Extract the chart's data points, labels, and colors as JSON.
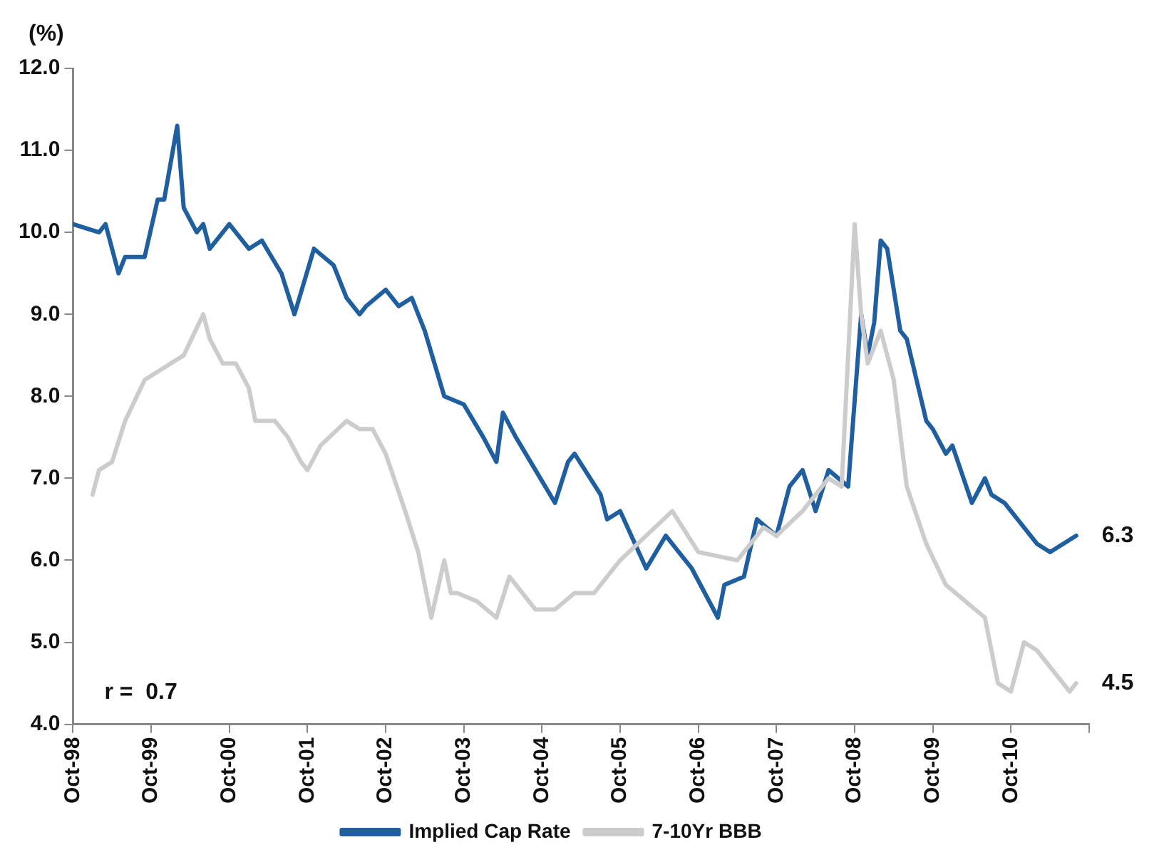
{
  "chart_data": {
    "type": "line",
    "ylabel": "(%)",
    "xlim": [
      "1998-10",
      "2011-10"
    ],
    "xticks": [
      {
        "value": "1998-10",
        "label": "Oct-98"
      },
      {
        "value": "1999-10",
        "label": "Oct-99"
      },
      {
        "value": "2000-10",
        "label": "Oct-00"
      },
      {
        "value": "2001-10",
        "label": "Oct-01"
      },
      {
        "value": "2002-10",
        "label": "Oct-02"
      },
      {
        "value": "2003-10",
        "label": "Oct-03"
      },
      {
        "value": "2004-10",
        "label": "Oct-04"
      },
      {
        "value": "2005-10",
        "label": "Oct-05"
      },
      {
        "value": "2006-10",
        "label": "Oct-06"
      },
      {
        "value": "2007-10",
        "label": "Oct-07"
      },
      {
        "value": "2008-10",
        "label": "Oct-08"
      },
      {
        "value": "2009-10",
        "label": "Oct-09"
      },
      {
        "value": "2010-10",
        "label": "Oct-10"
      },
      {
        "value": "2011-10",
        "label": null
      }
    ],
    "ylim": [
      4,
      12
    ],
    "yticks": [
      {
        "value": 4,
        "label": "4.0"
      },
      {
        "value": 5,
        "label": "5.0"
      },
      {
        "value": 6,
        "label": "6.0"
      },
      {
        "value": 7,
        "label": "7.0"
      },
      {
        "value": 8,
        "label": "8.0"
      },
      {
        "value": 9,
        "label": "9.0"
      },
      {
        "value": 10,
        "label": "10.0"
      },
      {
        "value": 11,
        "label": "11.0"
      },
      {
        "value": 12,
        "label": "12.0"
      }
    ],
    "grid": false,
    "legend": "bottom",
    "marker": "none",
    "series": [
      {
        "name": "Implied Cap Rate",
        "color": "#1f5fa0",
        "x": [
          "1998-10",
          "1999-02",
          "1999-03",
          "1999-05",
          "1999-06",
          "1999-09",
          "1999-11",
          "1999-12",
          "2000-02",
          "2000-03",
          "2000-05",
          "2000-06",
          "2000-07",
          "2000-10",
          "2001-01",
          "2001-03",
          "2001-06",
          "2001-08",
          "2001-11",
          "2002-02",
          "2002-04",
          "2002-06",
          "2002-07",
          "2002-10",
          "2002-12",
          "2003-02",
          "2003-04",
          "2003-07",
          "2003-10",
          "2004-01",
          "2004-03",
          "2004-04",
          "2004-06",
          "2004-09",
          "2004-12",
          "2005-02",
          "2005-03",
          "2005-07",
          "2005-08",
          "2005-10",
          "2006-02",
          "2006-05",
          "2006-09",
          "2006-11",
          "2007-01",
          "2007-02",
          "2007-05",
          "2007-07",
          "2007-10",
          "2007-12",
          "2008-02",
          "2008-04",
          "2008-06",
          "2008-09",
          "2008-11",
          "2008-12",
          "2009-01",
          "2009-02",
          "2009-03",
          "2009-05",
          "2009-06",
          "2009-09",
          "2009-10",
          "2009-12",
          "2010-01",
          "2010-04",
          "2010-06",
          "2010-07",
          "2010-09",
          "2010-11",
          "2010-12",
          "2011-02",
          "2011-04",
          "2011-06",
          "2011-08"
        ],
        "values": [
          10.1,
          10.0,
          10.1,
          9.5,
          9.7,
          9.7,
          10.4,
          10.4,
          11.3,
          10.3,
          10.0,
          10.1,
          9.8,
          10.1,
          9.8,
          9.9,
          9.5,
          9.0,
          9.8,
          9.6,
          9.2,
          9.0,
          9.1,
          9.3,
          9.1,
          9.2,
          8.8,
          8.0,
          7.9,
          7.5,
          7.2,
          7.8,
          7.5,
          7.1,
          6.7,
          7.2,
          7.3,
          6.8,
          6.5,
          6.6,
          5.9,
          6.3,
          5.9,
          5.6,
          5.3,
          5.7,
          5.8,
          6.5,
          6.3,
          6.9,
          7.1,
          6.6,
          7.1,
          6.9,
          9.0,
          8.5,
          8.9,
          9.9,
          9.8,
          8.8,
          8.7,
          7.7,
          7.6,
          7.3,
          7.4,
          6.7,
          7.0,
          6.8,
          6.7,
          6.5,
          6.4,
          6.2,
          6.1,
          6.2,
          6.3
        ]
      },
      {
        "name": "7-10Yr BBB",
        "color": "#cccccc",
        "x": [
          "1999-01",
          "1999-02",
          "1999-04",
          "1999-06",
          "1999-09",
          "1999-11",
          "2000-03",
          "2000-06",
          "2000-07",
          "2000-09",
          "2000-11",
          "2001-01",
          "2001-02",
          "2001-05",
          "2001-07",
          "2001-09",
          "2001-10",
          "2001-12",
          "2002-04",
          "2002-06",
          "2002-08",
          "2002-10",
          "2003-01",
          "2003-03",
          "2003-05",
          "2003-07",
          "2003-08",
          "2003-09",
          "2003-12",
          "2004-03",
          "2004-05",
          "2004-09",
          "2004-12",
          "2005-03",
          "2005-06",
          "2005-10",
          "2006-06",
          "2006-10",
          "2007-04",
          "2007-08",
          "2007-10",
          "2008-02",
          "2008-06",
          "2008-08",
          "2008-10",
          "2008-11",
          "2008-12",
          "2009-02",
          "2009-04",
          "2009-06",
          "2009-09",
          "2009-12",
          "2010-03",
          "2010-06",
          "2010-08",
          "2010-10",
          "2010-12",
          "2011-02",
          "2011-05",
          "2011-07",
          "2011-08"
        ],
        "values": [
          6.8,
          7.1,
          7.2,
          7.7,
          8.2,
          8.3,
          8.5,
          9.0,
          8.7,
          8.4,
          8.4,
          8.1,
          7.7,
          7.7,
          7.5,
          7.2,
          7.1,
          7.4,
          7.7,
          7.6,
          7.6,
          7.3,
          6.6,
          6.1,
          5.3,
          6.0,
          5.6,
          5.6,
          5.5,
          5.3,
          5.8,
          5.4,
          5.4,
          5.6,
          5.6,
          6.0,
          6.6,
          6.1,
          6.0,
          6.4,
          6.3,
          6.6,
          7.0,
          6.9,
          10.1,
          9.0,
          8.4,
          8.8,
          8.2,
          6.9,
          6.2,
          5.7,
          5.5,
          5.3,
          4.5,
          4.4,
          5.0,
          4.9,
          4.6,
          4.4,
          4.5
        ]
      }
    ],
    "annotations": [
      "r =  0.7",
      {
        "text": "6.3",
        "x": "2011-08",
        "y": 6.3
      },
      {
        "text": "4.5",
        "x": "2011-08",
        "y": 4.5
      }
    ]
  }
}
